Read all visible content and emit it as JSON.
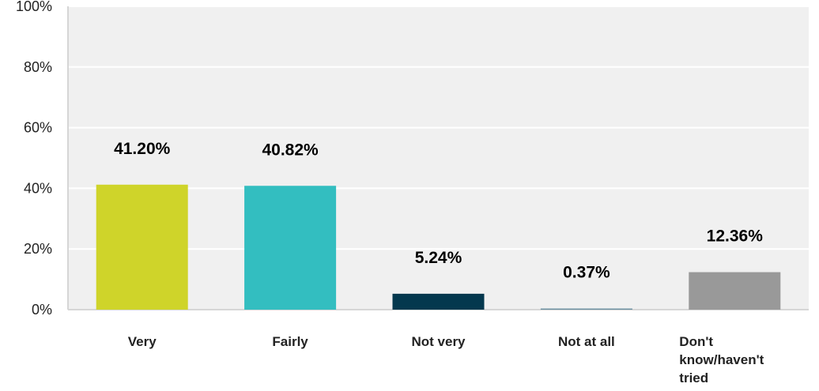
{
  "chart_data": {
    "type": "bar",
    "categories": [
      "Very",
      "Fairly",
      "Not very",
      "Not at all",
      "Don't know/haven't tried"
    ],
    "category_label_lines": [
      [
        "Very"
      ],
      [
        "Fairly"
      ],
      [
        "Not very"
      ],
      [
        "Not at all"
      ],
      [
        "Don't",
        "know/haven't",
        "tried"
      ]
    ],
    "values": [
      41.2,
      40.82,
      5.24,
      0.37,
      12.36
    ],
    "value_labels": [
      "41.20%",
      "40.82%",
      "5.24%",
      "0.37%",
      "12.36%"
    ],
    "bar_colors": [
      "#cfd42a",
      "#33bec0",
      "#04384e",
      "#6a8fa1",
      "#999999"
    ],
    "ylim": [
      0,
      100
    ],
    "yticks": [
      0,
      20,
      40,
      60,
      80,
      100
    ],
    "ytick_labels": [
      "0%",
      "20%",
      "40%",
      "60%",
      "80%",
      "100%"
    ],
    "plot_background": "#f0f0f0",
    "grid": true,
    "legend": "none"
  }
}
